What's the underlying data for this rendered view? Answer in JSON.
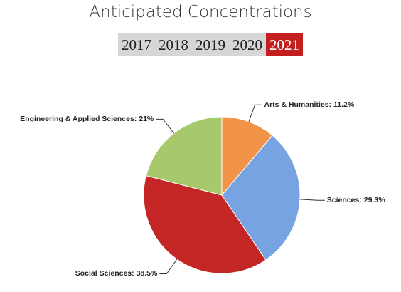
{
  "chart_data": {
    "type": "pie",
    "title": "Anticipated Concentrations",
    "tabs": [
      "2017",
      "2018",
      "2019",
      "2020",
      "2021"
    ],
    "active_tab": 4,
    "categories": [
      "Arts & Humanities",
      "Sciences",
      "Social Sciences",
      "Engineering & Applied Sciences"
    ],
    "values": [
      11.2,
      29.3,
      38.5,
      21
    ],
    "value_labels": [
      "11.2%",
      "29.3%",
      "38.5%",
      "21%"
    ],
    "colors": [
      "#f29447",
      "#78a3e2",
      "#c42626",
      "#a7c96c"
    ]
  }
}
